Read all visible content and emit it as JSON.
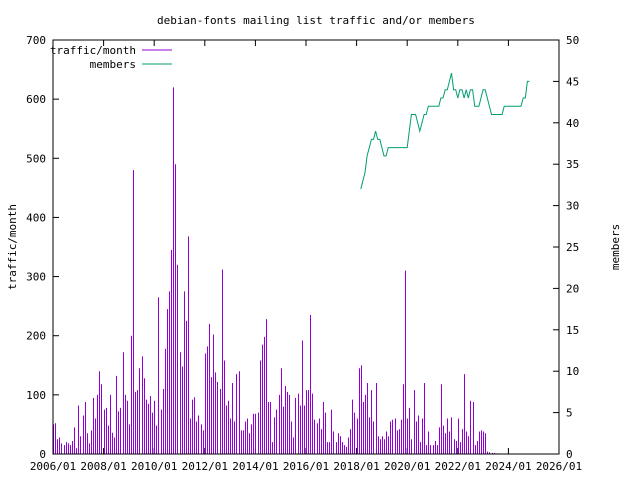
{
  "chart_data": {
    "type": "bar",
    "title": "debian-fonts mailing list traffic and/or members",
    "ylabel": "traffic/month",
    "y2label": "members",
    "ylim": [
      0,
      700
    ],
    "y2lim": [
      0,
      50
    ],
    "xlim": [
      "2006/01",
      "2026/01"
    ],
    "x_ticks": [
      "2006/01",
      "2008/01",
      "2010/01",
      "2012/01",
      "2014/01",
      "2016/01",
      "2018/01",
      "2020/01",
      "2022/01",
      "2024/01",
      "2026/01"
    ],
    "y_ticks": [
      "0",
      "100",
      "200",
      "300",
      "400",
      "500",
      "600",
      "700"
    ],
    "y2_ticks": [
      "0",
      "5",
      "10",
      "15",
      "20",
      "25",
      "30",
      "35",
      "40",
      "45",
      "50"
    ],
    "legend_position": "top-left",
    "colors": {
      "traffic": "#9400d3",
      "members": "#009e73",
      "axes": "#000000"
    },
    "series": [
      {
        "name": "traffic/month",
        "start": "2006/01",
        "values": [
          50,
          52,
          25,
          28,
          18,
          15,
          20,
          18,
          15,
          22,
          45,
          10,
          82,
          30,
          65,
          88,
          35,
          18,
          40,
          95,
          60,
          100,
          140,
          118,
          75,
          78,
          48,
          100,
          36,
          28,
          132,
          72,
          78,
          172,
          100,
          90,
          50,
          200,
          480,
          105,
          108,
          145,
          165,
          128,
          92,
          85,
          98,
          70,
          90,
          48,
          265,
          75,
          110,
          178,
          245,
          275,
          345,
          620,
          490,
          320,
          172,
          148,
          275,
          225,
          368,
          60,
          92,
          96,
          55,
          65,
          50,
          40,
          170,
          182,
          220,
          130,
          202,
          138,
          122,
          110,
          312,
          158,
          82,
          90,
          60,
          120,
          55,
          135,
          140,
          40,
          40,
          55,
          60,
          35,
          50,
          68,
          68,
          70,
          158,
          185,
          198,
          228,
          88,
          88,
          20,
          62,
          75,
          100,
          145,
          80,
          115,
          105,
          100,
          55,
          28,
          95,
          102,
          82,
          192,
          82,
          108,
          108,
          235,
          102,
          58,
          52,
          60,
          42,
          88,
          70,
          20,
          20,
          75,
          38,
          20,
          35,
          30,
          20,
          15,
          12,
          28,
          42,
          92,
          70,
          60,
          145,
          150,
          88,
          100,
          120,
          62,
          108,
          55,
          120,
          30,
          25,
          30,
          25,
          38,
          30,
          55,
          58,
          60,
          40,
          42,
          58,
          118,
          310,
          60,
          78,
          25,
          108,
          55,
          65,
          20,
          60,
          120,
          15,
          38,
          15,
          15,
          22,
          15,
          45,
          118,
          48,
          35,
          60,
          38,
          62,
          25,
          22,
          60,
          20,
          42,
          135,
          38,
          30,
          90,
          88,
          15,
          22,
          38,
          40,
          38,
          35,
          4,
          3,
          2,
          2,
          1,
          1
        ]
      },
      {
        "name": "members",
        "start": "2018/03",
        "values": [
          32,
          33,
          34,
          36,
          37,
          38,
          38,
          39,
          38,
          38,
          37,
          36,
          36,
          37,
          37,
          37,
          37,
          37,
          37,
          37,
          37,
          37,
          37,
          39,
          41,
          41,
          41,
          40,
          39,
          40,
          41,
          41,
          42,
          42,
          42,
          42,
          42,
          42,
          43,
          43,
          44,
          44,
          45,
          46,
          44,
          44,
          43,
          44,
          44,
          43,
          44,
          43,
          44,
          44,
          42,
          42,
          42,
          43,
          44,
          44,
          43,
          42,
          41,
          41,
          41,
          41,
          41,
          41,
          42,
          42,
          42,
          42,
          42,
          42,
          42,
          42,
          42,
          43,
          43,
          45,
          45
        ]
      }
    ]
  }
}
